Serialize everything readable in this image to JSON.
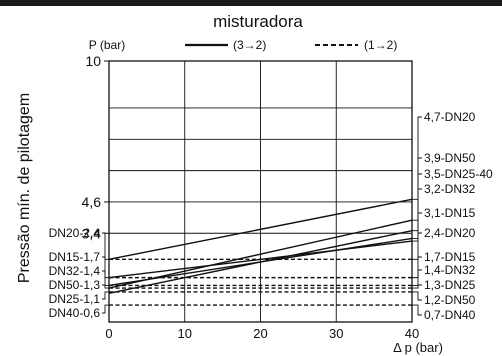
{
  "chart_data": {
    "type": "line",
    "title": "misturadora",
    "ylabel": "Pressão mín. de pilotagem",
    "y_unit_label": "P (bar)",
    "xlabel": "Δ p (bar)",
    "xlim": [
      0,
      40
    ],
    "ylim": [
      0,
      10
    ],
    "x_ticks": [
      0,
      10,
      20,
      30,
      40
    ],
    "y_ticks": [
      {
        "value": 3.4,
        "label": "3,4"
      },
      {
        "value": 4.6,
        "label": "4,6"
      },
      {
        "value": 10,
        "label": "10"
      }
    ],
    "grid": true,
    "legend": [
      {
        "style": "solid",
        "label": "(3→2)"
      },
      {
        "style": "dashed",
        "label": "(1→2)"
      }
    ],
    "series_solid": [
      {
        "label": "4,7-DN20",
        "x": [
          0,
          40
        ],
        "y": [
          2.4,
          4.7
        ]
      },
      {
        "label": "3,9-DN50",
        "x": [
          0,
          40
        ],
        "y": [
          1.3,
          3.9
        ]
      },
      {
        "label": "3,5-DN25-40",
        "x": [
          0,
          40
        ],
        "y": [
          1.1,
          3.5
        ]
      },
      {
        "label": "3,2-DN32",
        "x": [
          0,
          40
        ],
        "y": [
          1.4,
          3.2
        ]
      },
      {
        "label": "3,1-DN15",
        "x": [
          0,
          40
        ],
        "y": [
          1.7,
          3.1
        ]
      }
    ],
    "series_dashed": [
      {
        "left_label": "DN20-2,4",
        "right_label": "2,4-DN20",
        "y": 2.4
      },
      {
        "left_label": "DN15-1,7",
        "right_label": "1,7-DN15",
        "y": 1.7
      },
      {
        "left_label": "DN32-1,4",
        "right_label": "1,4-DN32",
        "y": 1.4
      },
      {
        "left_label": "DN50-1,3",
        "right_label": "1,3-DN25",
        "y": 1.3
      },
      {
        "left_label": "DN25-1,1",
        "right_label": "1,2-DN50",
        "y": 1.15
      },
      {
        "left_label": "DN40-0,6",
        "right_label": "0,7-DN40",
        "y": 0.65
      }
    ]
  }
}
